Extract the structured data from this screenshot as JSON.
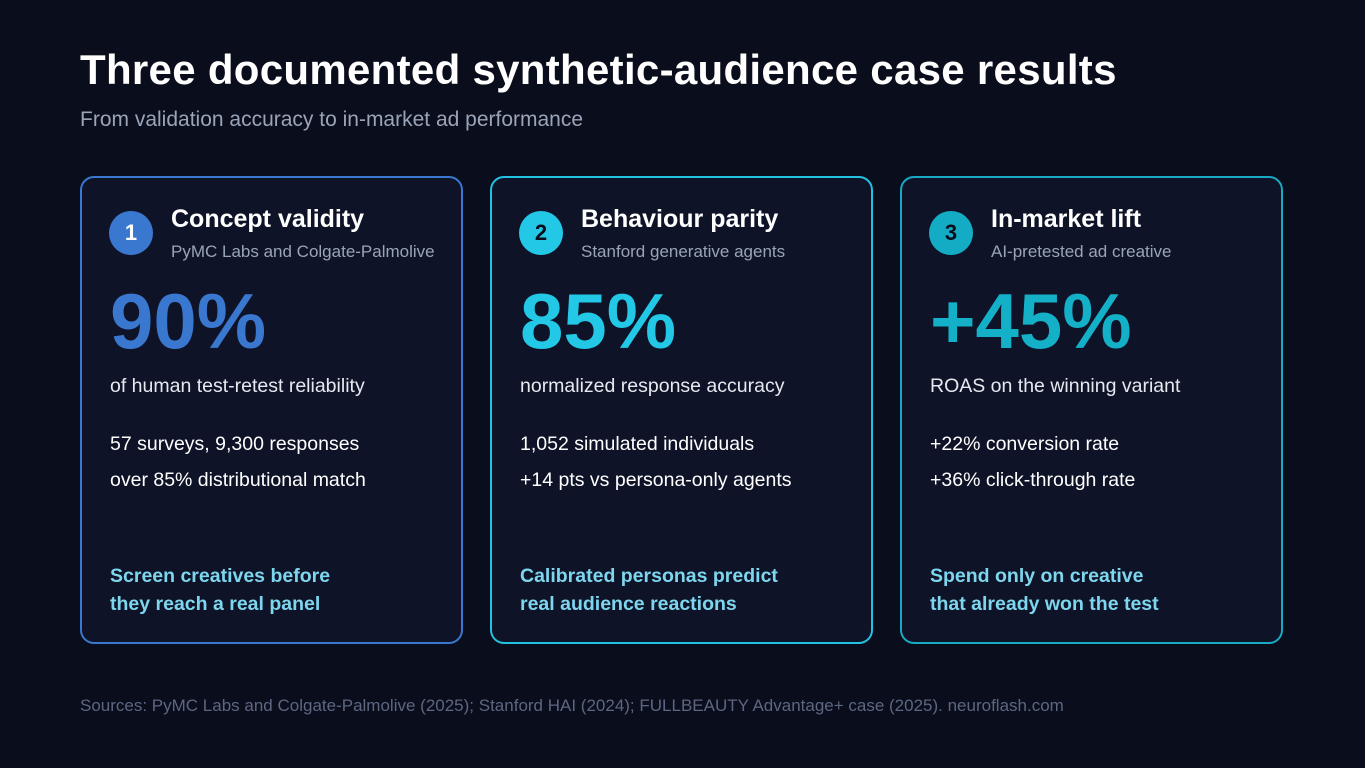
{
  "header": {
    "title": "Three documented synthetic-audience case results",
    "subtitle": "From validation accuracy to in-market ad performance"
  },
  "cards": [
    {
      "number": 1,
      "heading": "Concept validity",
      "source": "PyMC Labs and Colgate-Palmolive",
      "stat": "90%",
      "stat_label": "of human test-retest reliability",
      "details": [
        "57 surveys, 9,300 responses",
        "over 85% distributional match"
      ],
      "takeaway": [
        "Screen creatives before",
        "they reach a real panel"
      ]
    },
    {
      "number": 2,
      "heading": "Behaviour parity",
      "source": "Stanford generative agents",
      "stat": "85%",
      "stat_label": "normalized response accuracy",
      "details": [
        "1,052 simulated individuals",
        "+14 pts vs persona-only agents"
      ],
      "takeaway": [
        "Calibrated personas predict",
        "real audience reactions"
      ]
    },
    {
      "number": 3,
      "heading": "In-market lift",
      "source": "AI-pretested ad creative",
      "stat": "+45%",
      "stat_label": "ROAS on the winning variant",
      "details": [
        "+22% conversion rate",
        "+36% click-through rate"
      ],
      "takeaway": [
        "Spend only on creative",
        "that already won the test"
      ]
    }
  ],
  "footer": {
    "sources": "Sources: PyMC Labs and Colgate-Palmolive (2025); Stanford HAI (2024); FULLBEAUTY Advantage+ case (2025). neuroflash.com"
  }
}
